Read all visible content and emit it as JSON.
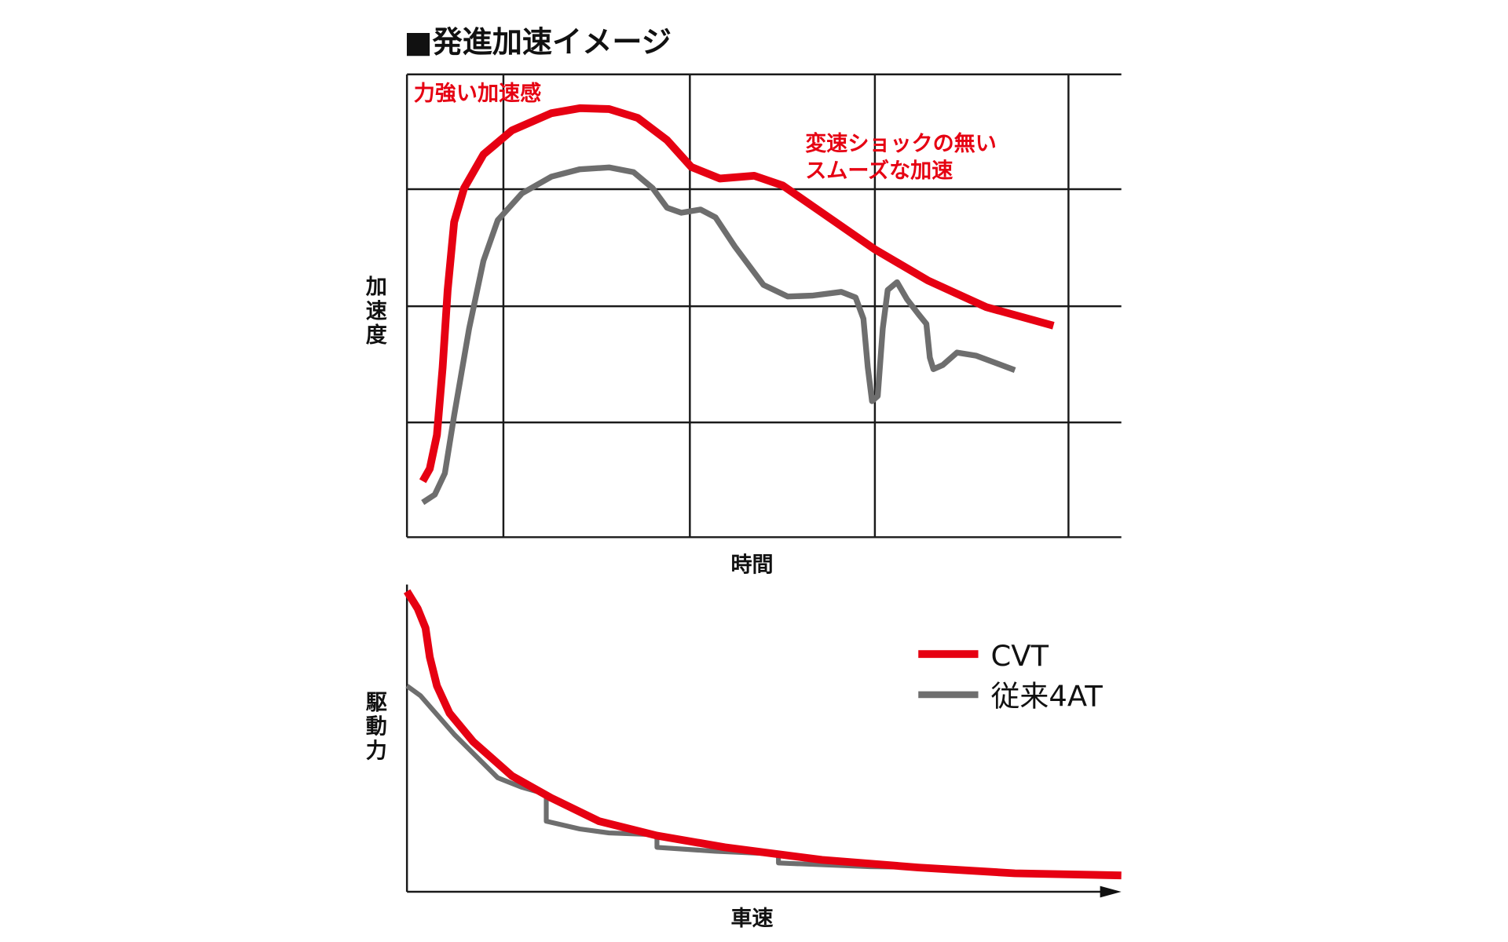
{
  "title": "■発進加速イメージ",
  "colors": {
    "cvt": "#e60012",
    "at4": "#6e6e6e",
    "grid": "#1a1a1a"
  },
  "chart_data": [
    {
      "type": "line",
      "title": "■発進加速イメージ",
      "xlabel": "時間",
      "ylabel": "加速度",
      "xlim": [
        0,
        100
      ],
      "ylim": [
        0,
        100
      ],
      "grid": true,
      "grid_x": [
        13.5,
        39.6,
        65.5,
        92.6
      ],
      "grid_y": [
        24.8,
        49.9,
        75.2
      ],
      "annotations": [
        {
          "text": "力強い加速感",
          "color": "#e60012"
        },
        {
          "text": "変速ショックの無い",
          "color": "#e60012"
        },
        {
          "text": "スムーズな加速",
          "color": "#e60012"
        }
      ],
      "series": [
        {
          "key": "cvt",
          "color": "#e60012",
          "x": [
            2.2,
            3.2,
            4.2,
            5.0,
            5.7,
            6.6,
            8.0,
            10.7,
            14.7,
            20.2,
            24.2,
            28.3,
            32.3,
            36.4,
            39.8,
            43.8,
            48.6,
            52.6,
            58.1,
            65.5,
            72.9,
            81.1,
            90.5
          ],
          "y": [
            12.1,
            14.8,
            22.1,
            36.7,
            53.4,
            68.1,
            75.4,
            82.7,
            87.9,
            91.6,
            92.7,
            92.5,
            90.6,
            85.8,
            80.0,
            77.5,
            78.1,
            76.0,
            70.1,
            62.2,
            55.5,
            49.7,
            45.7
          ]
        },
        {
          "key": "at4",
          "color": "#6e6e6e",
          "x": [
            2.2,
            3.9,
            5.3,
            6.6,
            8.7,
            10.7,
            12.7,
            16.1,
            20.2,
            24.2,
            28.3,
            31.7,
            34.4,
            36.4,
            38.4,
            41.1,
            43.2,
            45.9,
            49.9,
            53.3,
            56.7,
            60.8,
            62.8,
            63.9,
            64.5,
            65.1,
            65.9,
            66.6,
            67.3,
            68.6,
            70.0,
            71.6,
            72.7,
            73.2,
            73.7,
            75.0,
            77.0,
            79.7,
            85.1
          ],
          "y": [
            7.5,
            9.2,
            13.8,
            26.3,
            45.1,
            59.7,
            68.5,
            74.3,
            77.9,
            79.5,
            79.9,
            78.9,
            75.4,
            71.2,
            70.1,
            70.8,
            69.1,
            62.8,
            54.5,
            52.0,
            52.2,
            53.0,
            51.8,
            47.2,
            36.7,
            29.4,
            30.5,
            45.1,
            53.4,
            55.1,
            51.4,
            48.2,
            46.1,
            38.8,
            36.3,
            37.2,
            39.9,
            39.2,
            36.1
          ]
        }
      ]
    },
    {
      "type": "line",
      "xlabel": "車速",
      "ylabel": "駆動力",
      "xlim": [
        0,
        100
      ],
      "ylim": [
        0,
        100
      ],
      "grid": false,
      "legend_position": "top-right",
      "series": [
        {
          "name": "CVT",
          "key": "cvt",
          "color": "#e60012",
          "x": [
            0,
            1.5,
            2.6,
            3.2,
            4.2,
            5.95,
            9.3,
            14.7,
            20.2,
            26.9,
            35.0,
            44.5,
            58.1,
            71.6,
            85.1,
            100
          ],
          "y": [
            97.8,
            92.1,
            85.8,
            76.3,
            66.9,
            58.0,
            48.6,
            37.5,
            30.3,
            22.7,
            18.0,
            14.2,
            10.1,
            7.6,
            5.7,
            5.0
          ]
        },
        {
          "name": "従来4AT",
          "key": "at4",
          "color": "#6e6e6e",
          "x": [
            0,
            1.9,
            6.6,
            12.7,
            16.1,
            19.5,
            19.5,
            24.2,
            28.3,
            35.0,
            35.0,
            43.2,
            52.0,
            52.0,
            64.8,
            72.9
          ],
          "y": [
            66.9,
            63.7,
            51.1,
            36.9,
            33.8,
            31.5,
            22.7,
            20.2,
            18.9,
            18.3,
            14.2,
            12.9,
            12.0,
            9.1,
            7.9,
            7.6
          ]
        }
      ]
    }
  ]
}
